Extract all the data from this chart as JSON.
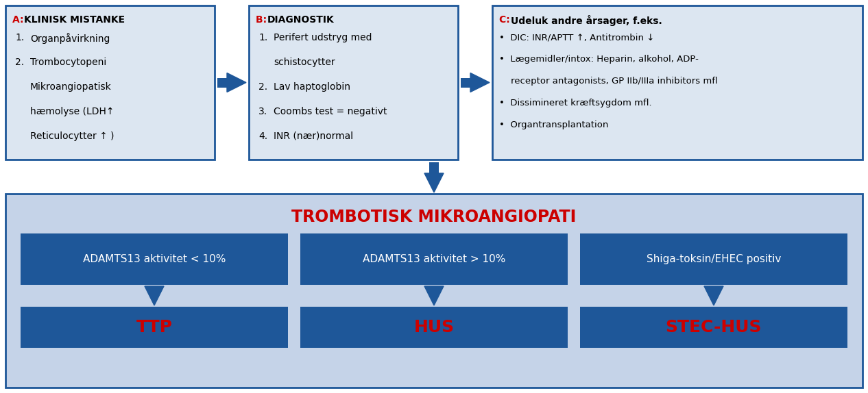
{
  "bg_color": "#ffffff",
  "top_box_border_color": "#1e5799",
  "top_box_fill_color": "#dce6f1",
  "bottom_section_fill": "#c5d3e8",
  "dark_blue_box": "#1e5799",
  "arrow_color": "#1e5799",
  "red_color": "#cc0000",
  "black_color": "#000000",
  "white_color": "#ffffff",
  "box_A_title_red": "A: ",
  "box_A_title_black": "KLINISK MISTANKE",
  "box_A_lines": [
    [
      "1.",
      "Organpåvirkning"
    ],
    [
      "2.",
      "Trombocytopeni"
    ],
    [
      "",
      "Mikroangiopatisk"
    ],
    [
      "",
      "hæmolyse (LDH↑"
    ],
    [
      "",
      "Reticulocytter ↑ )"
    ]
  ],
  "box_B_title_red": "B: ",
  "box_B_title_black": "DIAGNOSTIK",
  "box_B_lines": [
    [
      "1.",
      "Perifert udstryg med"
    ],
    [
      "",
      "schistocytter"
    ],
    [
      "2.",
      "Lav haptoglobin"
    ],
    [
      "3.",
      "Coombs test = negativt"
    ],
    [
      "4.",
      "INR (nær)normal"
    ]
  ],
  "box_C_title_red": "C: ",
  "box_C_title_black": "Udeluk andre årsager, f.eks.",
  "box_C_lines": [
    "•  DIC: INR/APTT ↑, Antitrombin ↓",
    "•  Lægemidler/intox: Heparin, alkohol, ADP-",
    "    receptor antagonists, GP IIb/IIIa inhibitors mfl",
    "•  Dissimineret kræftsygdom mfl.",
    "•  Organtransplantation"
  ],
  "main_title": "TROMBOTISK MIKROANGIOPATI",
  "sub_boxes": [
    {
      "label": "ADAMTS13 aktivitet < 10%",
      "result": "TTP"
    },
    {
      "label": "ADAMTS13 aktivitet > 10%",
      "result": "HUS"
    },
    {
      "label": "Shiga-toksin/EHEC positiv",
      "result": "STEC-HUS"
    }
  ]
}
